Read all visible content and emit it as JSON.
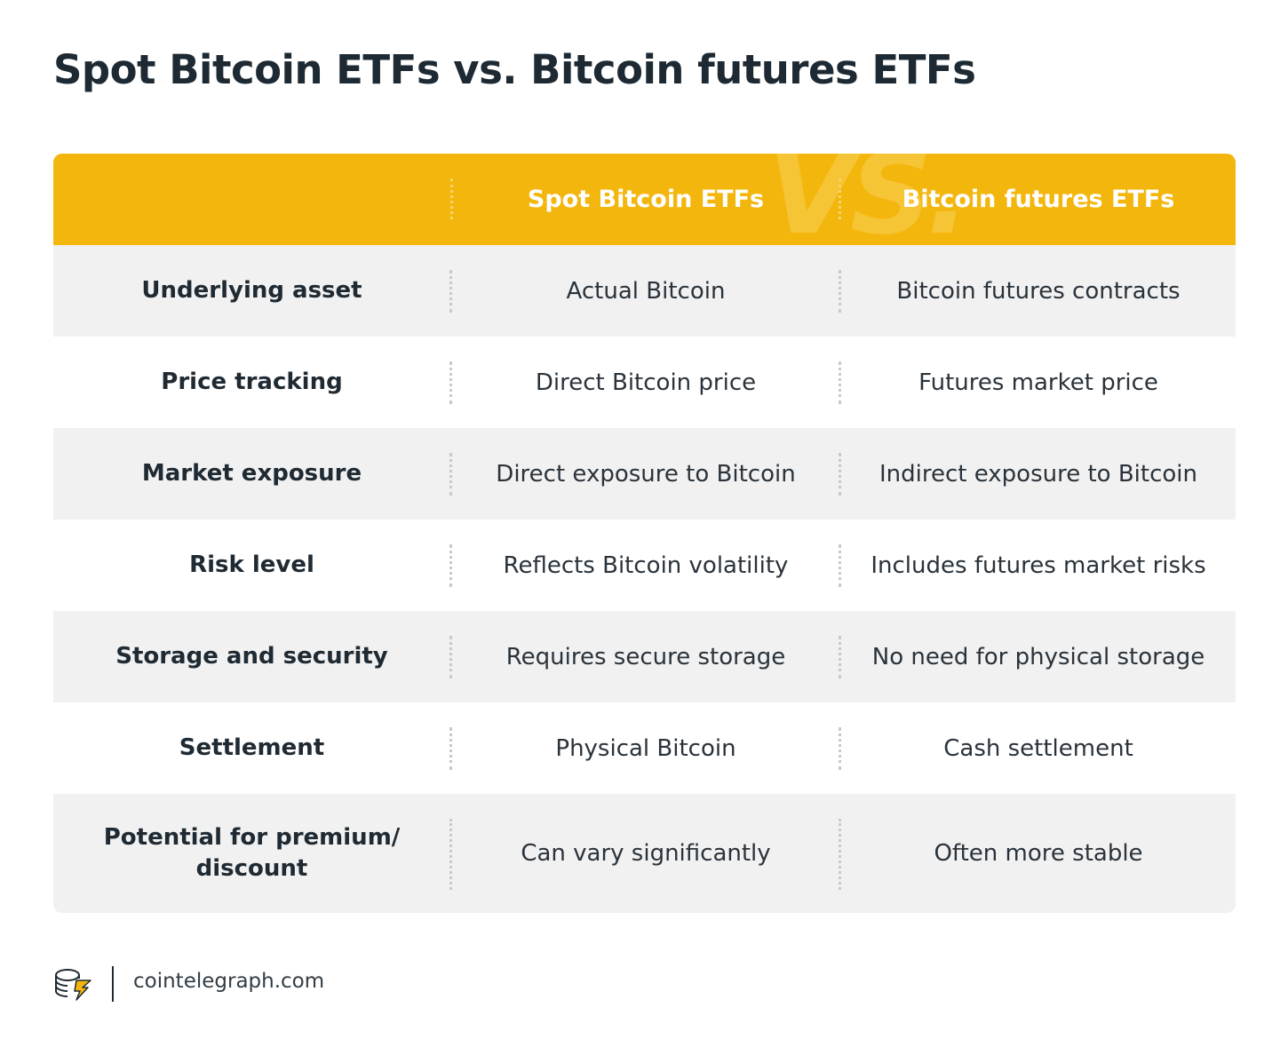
{
  "title": "Spot Bitcoin ETFs vs. Bitcoin futures ETFs",
  "header": {
    "col1": "",
    "col2": "Spot Bitcoin ETFs",
    "col3": "Bitcoin futures ETFs",
    "vs": "VS."
  },
  "rows": [
    {
      "label": "Underlying asset",
      "spot": "Actual Bitcoin",
      "futures": "Bitcoin futures contracts"
    },
    {
      "label": "Price tracking",
      "spot": "Direct Bitcoin price",
      "futures": "Futures market price"
    },
    {
      "label": "Market exposure",
      "spot": "Direct exposure to Bitcoin",
      "futures": "Indirect exposure to Bitcoin"
    },
    {
      "label": "Risk level",
      "spot": "Reflects Bitcoin volatility",
      "futures": "Includes futures market risks"
    },
    {
      "label": "Storage and security",
      "spot": "Requires secure storage",
      "futures": "No need for physical storage"
    },
    {
      "label": "Settlement",
      "spot": "Physical Bitcoin",
      "futures": "Cash settlement"
    },
    {
      "label_line1": "Potential for premium/",
      "label_line2": "discount",
      "spot": "Can vary significantly",
      "futures": "Often more stable"
    }
  ],
  "footer": {
    "site": "cointelegraph.com",
    "logo_icon": "cointelegraph-logo-icon"
  },
  "colors": {
    "header_bg": "#f3b60d",
    "row_shade": "#f1f1f1",
    "row_plain": "#ffffff",
    "text_dark": "#1f2a33"
  }
}
